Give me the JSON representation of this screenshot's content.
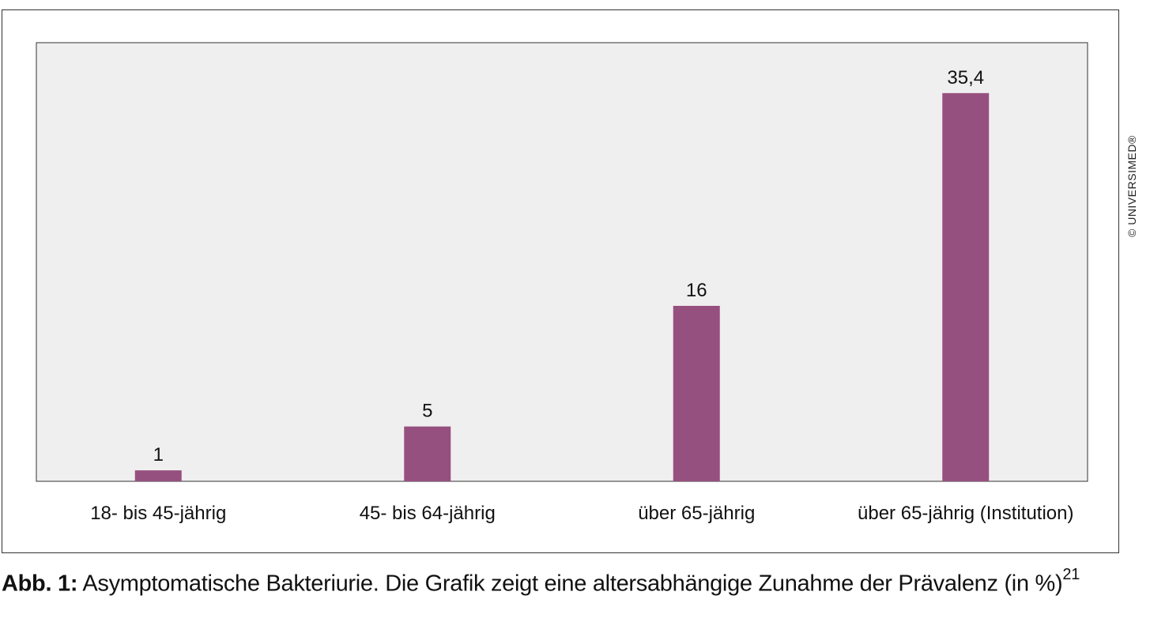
{
  "chart_data": {
    "type": "bar",
    "categories": [
      "18- bis 45-jährig",
      "45- bis 64-jährig",
      "über 65-jährig",
      "über 65-jährig (Institution)"
    ],
    "values": [
      1,
      5,
      16,
      35.4
    ],
    "value_labels": [
      "1",
      "5",
      "16",
      "35,4"
    ],
    "ylim": [
      0,
      40
    ],
    "grid": false,
    "bar_color": "#96507f",
    "plot_background": "#efefef"
  },
  "caption": {
    "label": "Abb. 1:",
    "text": " Asymptomatische Bakteriurie. Die Grafik zeigt eine altersabhängige Zunahme der Prävalenz (in %)",
    "ref": "21"
  },
  "copyright": "© UNIVERSIMED®"
}
